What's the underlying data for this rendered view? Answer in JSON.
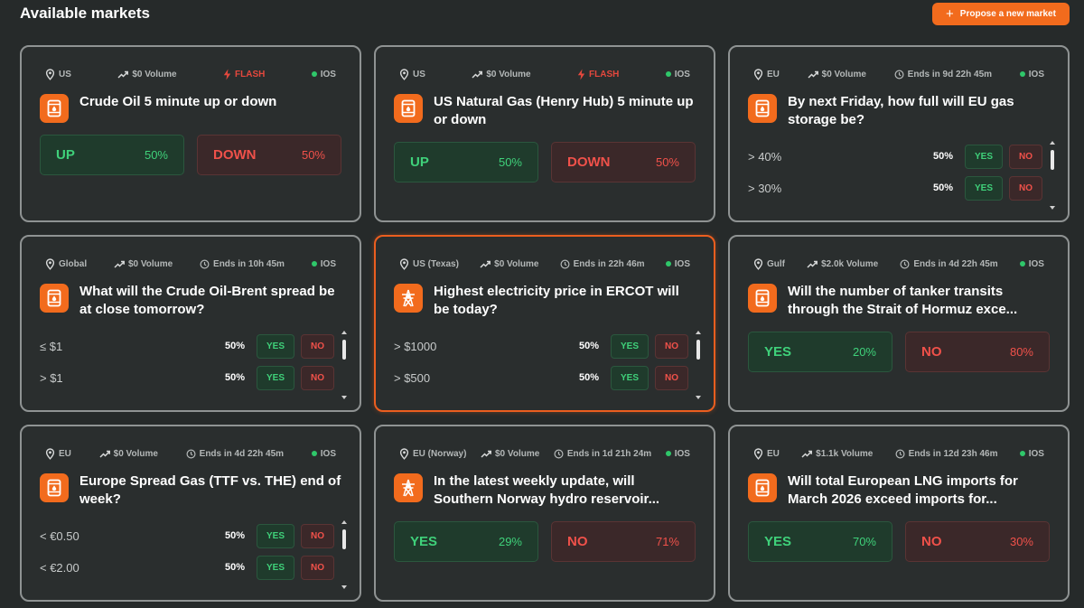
{
  "header": {
    "title": "Available markets",
    "propose_label": "Propose a new market",
    "accent_color": "#f26b1d"
  },
  "markets": [
    {
      "region": "US",
      "volume": "$0 Volume",
      "flash": "FLASH",
      "status": "IOS",
      "icon": "oil-barrel-icon",
      "title": "Crude Oil 5 minute up or down",
      "yes_label": "UP",
      "yes_pct": "50%",
      "no_label": "DOWN",
      "no_pct": "50%"
    },
    {
      "region": "US",
      "volume": "$0 Volume",
      "flash": "FLASH",
      "status": "IOS",
      "icon": "oil-barrel-icon",
      "title": "US Natural Gas (Henry Hub) 5 minute up or down",
      "yes_label": "UP",
      "yes_pct": "50%",
      "no_label": "DOWN",
      "no_pct": "50%"
    },
    {
      "region": "EU",
      "volume": "$0 Volume",
      "ends": "Ends in 9d 22h 45m",
      "status": "IOS",
      "icon": "oil-barrel-icon",
      "title": "By next Friday, how full will EU gas storage be?",
      "options": [
        {
          "label": "> 40%",
          "pct": "50%",
          "yes": "YES",
          "no": "NO"
        },
        {
          "label": "> 30%",
          "pct": "50%",
          "yes": "YES",
          "no": "NO"
        }
      ]
    },
    {
      "region": "Global",
      "volume": "$0 Volume",
      "ends": "Ends in 10h 45m",
      "status": "IOS",
      "icon": "oil-barrel-icon",
      "title": "What will the Crude Oil-Brent spread be at close tomorrow?",
      "options": [
        {
          "label": "≤ $1",
          "pct": "50%",
          "yes": "YES",
          "no": "NO"
        },
        {
          "label": "> $1",
          "pct": "50%",
          "yes": "YES",
          "no": "NO"
        }
      ]
    },
    {
      "region": "US (Texas)",
      "volume": "$0 Volume",
      "ends": "Ends in 22h 46m",
      "status": "IOS",
      "icon": "power-tower-icon",
      "title": "Highest electricity price in ERCOT will be today?",
      "options": [
        {
          "label": "> $1000",
          "pct": "50%",
          "yes": "YES",
          "no": "NO"
        },
        {
          "label": "> $500",
          "pct": "50%",
          "yes": "YES",
          "no": "NO"
        }
      ]
    },
    {
      "region": "Gulf",
      "volume": "$2.0k Volume",
      "ends": "Ends in 4d 22h 45m",
      "status": "IOS",
      "icon": "oil-barrel-icon",
      "title": "Will the number of tanker transits through the Strait of Hormuz exce...",
      "yes_label": "YES",
      "yes_pct": "20%",
      "no_label": "NO",
      "no_pct": "80%"
    },
    {
      "region": "EU",
      "volume": "$0 Volume",
      "ends": "Ends in 4d 22h 45m",
      "status": "IOS",
      "icon": "oil-barrel-icon",
      "title": "Europe Spread Gas (TTF vs. THE) end of week?",
      "options": [
        {
          "label": "< €0.50",
          "pct": "50%",
          "yes": "YES",
          "no": "NO"
        },
        {
          "label": "< €2.00",
          "pct": "50%",
          "yes": "YES",
          "no": "NO"
        }
      ]
    },
    {
      "region": "EU (Norway)",
      "volume": "$0 Volume",
      "ends": "Ends in 1d 21h 24m",
      "status": "IOS",
      "icon": "power-tower-icon",
      "title": "In the latest weekly update, will Southern Norway hydro reservoir...",
      "yes_label": "YES",
      "yes_pct": "29%",
      "no_label": "NO",
      "no_pct": "71%"
    },
    {
      "region": "EU",
      "volume": "$1.1k Volume",
      "ends": "Ends in 12d 23h 46m",
      "status": "IOS",
      "icon": "oil-barrel-icon",
      "title": "Will total European LNG imports for March 2026 exceed imports for...",
      "yes_label": "YES",
      "yes_pct": "70%",
      "no_label": "NO",
      "no_pct": "30%"
    }
  ]
}
